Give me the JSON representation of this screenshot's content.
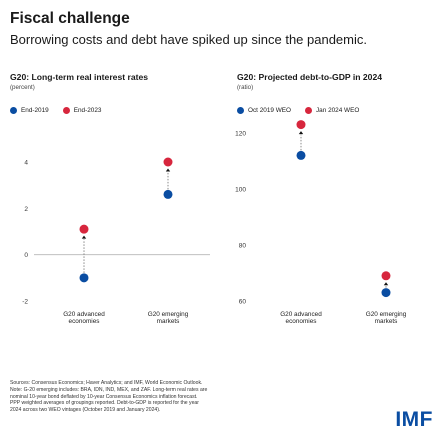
{
  "title": "Fiscal challenge",
  "subtitle": "Borrowing costs and debt have spiked up since the pandemic.",
  "colors": {
    "blue": "#0a4da2",
    "red": "#d7263d",
    "logo": "#0a4da2"
  },
  "chart_data": [
    {
      "type": "scatter",
      "title": "G20: Long-term real interest rates",
      "ylabel": "(percent)",
      "categories": [
        "G20 advanced economies",
        "G20 emerging markets"
      ],
      "ylim": [
        -2,
        4
      ],
      "yticks": [
        "-2",
        "0",
        "2",
        "4"
      ],
      "series": [
        {
          "name": "End-2019",
          "color": "#0a4da2",
          "values": [
            -1.0,
            2.6
          ]
        },
        {
          "name": "End-2023",
          "color": "#d7263d",
          "values": [
            1.1,
            4.0
          ]
        }
      ]
    },
    {
      "type": "scatter",
      "title": "G20: Projected debt-to-GDP in 2024",
      "ylabel": "(ratio)",
      "categories": [
        "G20 advanced economies",
        "G20 emerging markets"
      ],
      "ylim": [
        60,
        120
      ],
      "yticks": [
        "60",
        "80",
        "100",
        "120"
      ],
      "series": [
        {
          "name": "Oct 2019 WEO",
          "color": "#0a4da2",
          "values": [
            112,
            63
          ]
        },
        {
          "name": "Jan 2024 WEO",
          "color": "#d7263d",
          "values": [
            123,
            69
          ]
        }
      ]
    }
  ],
  "category_labels": [
    [
      "G20 advanced",
      "economies"
    ],
    [
      "G20 emerging",
      "markets"
    ]
  ],
  "notes": [
    "Sources: Consensus Economics; Haver Analytics; and IMF, World Economic Outlook.",
    "Note: G-20 emerging includes: BRA, IDN, IND, MEX, and ZAF. Long-term real rates are",
    "nominal 10-year bond deflated by 10-year Consensus Economics inflation forecast.",
    "PPP weighted averages of groupings reported. Debt-to-GDP is reported for the year",
    "2024 across two WEO vintages (October 2019 and January 2024)."
  ],
  "logo": "IMF"
}
